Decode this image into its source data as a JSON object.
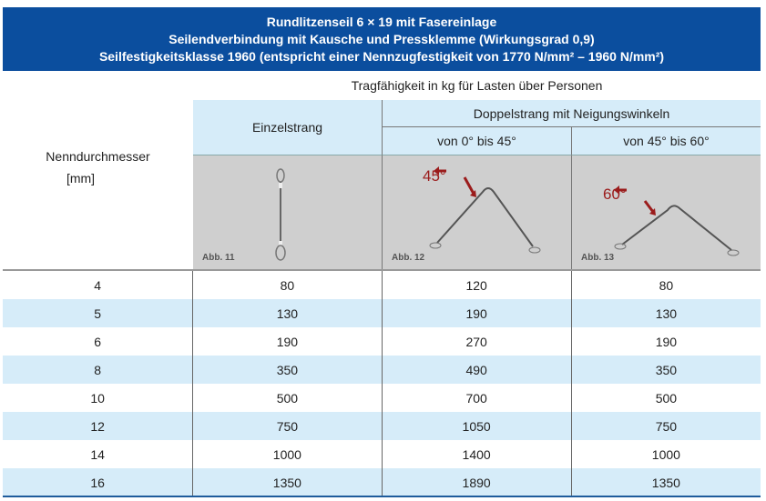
{
  "banner": {
    "line1": "Rundlitzenseil 6 × 19 mit Fasereinlage",
    "line2": "Seilendverbindung mit Kausche und Pressklemme (Wirkungsgrad 0,9)",
    "line3": "Seilfestigkeitsklasse 1960 (entspricht einer Nennzugfestigkeit von 1770 N/mm² – 1960 N/mm²)"
  },
  "caption": "Tragfähigkeit in kg für Lasten über Personen",
  "columns": {
    "diameter_label": "Nenndurchmesser",
    "diameter_unit": "[mm]",
    "single": "Einzelstrang",
    "double": "Doppelstrang mit Neigungswinkeln",
    "double_a": "von 0° bis 45°",
    "double_b": "von 45° bis 60°"
  },
  "figures": [
    {
      "label": "Abb. 11"
    },
    {
      "label": "Abb. 12",
      "angle": "45°"
    },
    {
      "label": "Abb. 13",
      "angle": "60°"
    }
  ],
  "colors": {
    "banner": "#0b4e9e",
    "header_bg": "#d6ecf9",
    "image_bg": "#cfcfcf",
    "angle_marker": "#9b1c1c"
  },
  "rows": [
    [
      "4",
      "80",
      "120",
      "80"
    ],
    [
      "5",
      "130",
      "190",
      "130"
    ],
    [
      "6",
      "190",
      "270",
      "190"
    ],
    [
      "8",
      "350",
      "490",
      "350"
    ],
    [
      "10",
      "500",
      "700",
      "500"
    ],
    [
      "12",
      "750",
      "1050",
      "750"
    ],
    [
      "14",
      "1000",
      "1400",
      "1000"
    ],
    [
      "16",
      "1350",
      "1890",
      "1350"
    ]
  ]
}
